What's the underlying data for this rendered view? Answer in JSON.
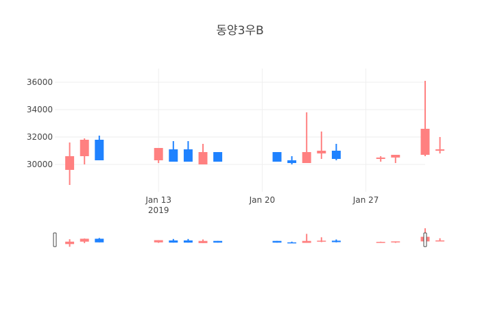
{
  "chart_data": {
    "type": "candlestick",
    "title": "동양3우B",
    "colors": {
      "increasing": "#ff8080",
      "decreasing": "#1f82ff",
      "grid": "#eeeeee",
      "text": "#444444"
    },
    "y_ticks": [
      "30000",
      "32000",
      "34000",
      "36000"
    ],
    "ylim": [
      28000,
      37000
    ],
    "x_ticks": [
      {
        "label": "Jan 13",
        "sub": "2019",
        "date": "2019-01-13"
      },
      {
        "label": "Jan 20",
        "sub": "",
        "date": "2019-01-20"
      },
      {
        "label": "Jan 27",
        "sub": "",
        "date": "2019-01-27"
      }
    ],
    "xlim": [
      "2019-01-06",
      "2019-01-31"
    ],
    "candles": [
      {
        "date": "2019-01-07",
        "open": 29600,
        "high": 31600,
        "low": 28500,
        "close": 30600
      },
      {
        "date": "2019-01-08",
        "open": 30600,
        "high": 31900,
        "low": 30000,
        "close": 31800
      },
      {
        "date": "2019-01-09",
        "open": 31800,
        "high": 32100,
        "low": 30300,
        "close": 30300
      },
      {
        "date": "2019-01-13",
        "open": 30300,
        "high": 31200,
        "low": 30100,
        "close": 31200
      },
      {
        "date": "2019-01-14",
        "open": 31100,
        "high": 31700,
        "low": 30200,
        "close": 30200
      },
      {
        "date": "2019-01-15",
        "open": 31100,
        "high": 31700,
        "low": 30200,
        "close": 30200
      },
      {
        "date": "2019-01-16",
        "open": 30000,
        "high": 31500,
        "low": 30000,
        "close": 30900
      },
      {
        "date": "2019-01-17",
        "open": 30900,
        "high": 30900,
        "low": 30200,
        "close": 30200
      },
      {
        "date": "2019-01-21",
        "open": 30900,
        "high": 30900,
        "low": 30200,
        "close": 30200
      },
      {
        "date": "2019-01-22",
        "open": 30300,
        "high": 30600,
        "low": 30000,
        "close": 30100
      },
      {
        "date": "2019-01-23",
        "open": 30100,
        "high": 33800,
        "low": 30100,
        "close": 30900
      },
      {
        "date": "2019-01-24",
        "open": 30800,
        "high": 32400,
        "low": 30400,
        "close": 31000
      },
      {
        "date": "2019-01-25",
        "open": 31000,
        "high": 31500,
        "low": 30300,
        "close": 30400
      },
      {
        "date": "2019-01-28",
        "open": 30400,
        "high": 30600,
        "low": 30200,
        "close": 30500
      },
      {
        "date": "2019-01-29",
        "open": 30500,
        "high": 30700,
        "low": 30100,
        "close": 30700
      },
      {
        "date": "2019-01-31",
        "open": 30700,
        "high": 36100,
        "low": 30600,
        "close": 32600
      },
      {
        "date": "2019-02-01",
        "open": 31000,
        "high": 32000,
        "low": 30800,
        "close": 31100
      }
    ]
  }
}
